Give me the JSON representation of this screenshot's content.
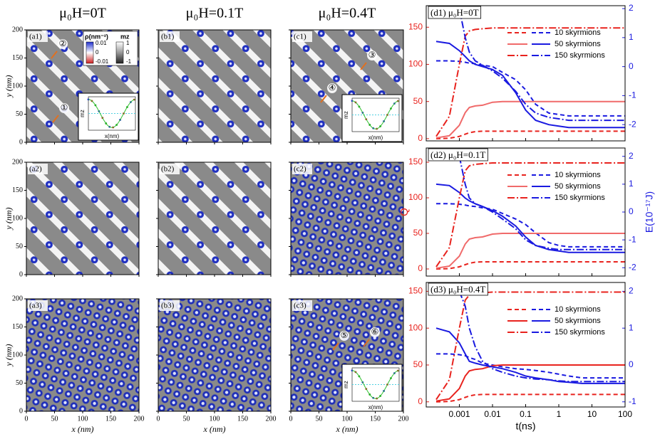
{
  "image_panels": {
    "columns": [
      "μ₀H=0T",
      "μ₀H=0.1T",
      "μ₀H=0.4T"
    ],
    "xlim": [
      0,
      200
    ],
    "ylim": [
      0,
      200
    ],
    "xticks": [
      0,
      50,
      100,
      150,
      200
    ],
    "yticks": [
      0,
      50,
      100,
      150,
      200
    ],
    "xlabel": "x (nm)",
    "ylabel": "y (nm)",
    "panels": [
      {
        "label": "(a1)",
        "pattern": "stripes",
        "annotations": [
          "②",
          "①"
        ],
        "inset": {
          "ylabel": "mz",
          "xlabel": "x(nm)"
        },
        "colorbar": {
          "rho_label": "ρ(nm⁻²)",
          "mz_label": "mz",
          "rho_ticks": [
            0.01,
            0,
            -0.01
          ],
          "mz_ticks": [
            1,
            0,
            -1
          ]
        }
      },
      {
        "label": "(b1)",
        "pattern": "stripes"
      },
      {
        "label": "(c1)",
        "pattern": "stripes",
        "annotations": [
          "③",
          "④"
        ],
        "inset": {
          "ylabel": "mz",
          "xlabel": "x(nm)"
        }
      },
      {
        "label": "(a2)",
        "pattern": "stripes"
      },
      {
        "label": "(b2)",
        "pattern": "stripes"
      },
      {
        "label": "(c2)",
        "pattern": "dots"
      },
      {
        "label": "(a3)",
        "pattern": "dots"
      },
      {
        "label": "(b3)",
        "pattern": "dots"
      },
      {
        "label": "(c3)",
        "pattern": "dots",
        "annotations": [
          "⑤",
          "⑥"
        ],
        "inset": {
          "ylabel": "mz",
          "xlabel": "x(nm)"
        }
      }
    ]
  },
  "chart_data": [
    {
      "type": "line",
      "title": "(d1) μ₀H=0T",
      "xscale": "log",
      "xlim": [
        0.0001,
        100
      ],
      "xticks": [
        0.001,
        0.01,
        0.1,
        1,
        10,
        100
      ],
      "xtick_labels": false,
      "ylim": [
        -3,
        179
      ],
      "yticks": [
        0,
        50,
        100,
        150
      ],
      "y2lim": [
        -2.56,
        2.1
      ],
      "y2ticks": [
        -2,
        -1,
        0,
        1,
        2
      ],
      "x": [
        0.0002,
        0.0005,
        0.001,
        0.0015,
        0.002,
        0.003,
        0.005,
        0.01,
        0.02,
        0.05,
        0.1,
        0.2,
        0.5,
        1,
        2,
        5,
        10,
        20,
        50,
        100
      ],
      "series": [
        {
          "name": "10 skyrmions",
          "dash": "dashed",
          "q": {
            "color": "#e8231e",
            "values": [
              0,
              0.5,
              3,
              6,
              8,
              9.5,
              10,
              10,
              10,
              10,
              10,
              10,
              10,
              10,
              10,
              10,
              10,
              10,
              10,
              10
            ]
          },
          "e": {
            "color": "#1a1ae0",
            "axis": "y2",
            "values": [
              0.2,
              0.2,
              0.18,
              0.15,
              0.12,
              0.1,
              0.05,
              0,
              -0.2,
              -0.45,
              -0.8,
              -1.3,
              -1.6,
              -1.65,
              -1.7,
              -1.7,
              -1.7,
              -1.7,
              -1.7,
              -1.7
            ]
          }
        },
        {
          "name": "50 skyrmions",
          "dash": "solid",
          "q": {
            "color": "#f06a6a",
            "values": [
              1,
              4,
              18,
              35,
              42,
              44,
              45,
              49,
              50,
              50,
              50,
              50,
              50,
              50,
              50,
              50,
              50,
              50,
              50,
              50
            ]
          },
          "e": {
            "color": "#1a1ae0",
            "axis": "y2",
            "values": [
              0.87,
              0.8,
              0.55,
              0.35,
              0.2,
              0.08,
              0,
              -0.1,
              -0.3,
              -0.9,
              -1.5,
              -1.85,
              -2,
              -2.05,
              -2.1,
              -2.1,
              -2.1,
              -2.1,
              -2.1,
              -2.1
            ]
          }
        },
        {
          "name": "150 skyrmions",
          "dash": "dashdot",
          "q": {
            "color": "#e8231e",
            "values": [
              3,
              30,
              100,
              138,
              145,
              147,
              148,
              149,
              149,
              149,
              149,
              149,
              149,
              149,
              149,
              149,
              149,
              149,
              149,
              149
            ]
          },
          "e": {
            "color": "#1a1ae0",
            "axis": "y2",
            "values": [
              null,
              null,
              2,
              1,
              0.5,
              0.2,
              0.05,
              -0.15,
              -0.4,
              -0.85,
              -1.3,
              -1.6,
              -1.75,
              -1.8,
              -1.85,
              -1.85,
              -1.85,
              -1.85,
              -1.85,
              -1.85
            ]
          }
        }
      ]
    },
    {
      "type": "line",
      "title": "(d2) μ₀H=0.1T",
      "xscale": "log",
      "xlim": [
        0.0001,
        100
      ],
      "xticks": [
        0.001,
        0.01,
        0.1,
        1,
        10,
        100
      ],
      "xtick_labels": false,
      "ylabel": "Q",
      "y2label": "E(10⁻¹⁷J)",
      "ylim": [
        -10,
        170
      ],
      "yticks": [
        0,
        50,
        100,
        150
      ],
      "y2lim": [
        -2.3,
        2.3
      ],
      "y2ticks": [
        -2,
        -1,
        0,
        1,
        2
      ],
      "x": [
        0.0002,
        0.0005,
        0.001,
        0.0015,
        0.002,
        0.003,
        0.005,
        0.01,
        0.02,
        0.05,
        0.1,
        0.2,
        0.5,
        1,
        2,
        5,
        10,
        20,
        50,
        100
      ],
      "series": [
        {
          "name": "10 skyrmions",
          "dash": "dashed",
          "q": {
            "color": "#e8231e",
            "values": [
              0,
              0.5,
              3,
              6,
              8,
              9.5,
              10,
              10,
              10,
              10,
              10,
              10,
              10,
              10,
              10,
              10,
              10,
              10,
              10,
              10
            ]
          },
          "e": {
            "color": "#1a1ae0",
            "axis": "y2",
            "values": [
              0.3,
              0.3,
              0.28,
              0.25,
              0.22,
              0.2,
              0.15,
              0.1,
              -0.05,
              -0.25,
              -0.45,
              -0.75,
              -1.1,
              -1.2,
              -1.25,
              -1.25,
              -1.25,
              -1.25,
              -1.25,
              -1.25
            ]
          }
        },
        {
          "name": "50 skyrmions",
          "dash": "solid",
          "q": {
            "color": "#f06a6a",
            "values": [
              1,
              4,
              18,
              35,
              42,
              44,
              45,
              49,
              50,
              50,
              50,
              50,
              50,
              50,
              50,
              50,
              50,
              50,
              50,
              50
            ]
          },
          "e": {
            "color": "#1a1ae0",
            "axis": "y2",
            "values": [
              1,
              0.95,
              0.7,
              0.5,
              0.4,
              0.3,
              0.2,
              0.05,
              -0.15,
              -0.5,
              -0.9,
              -1.2,
              -1.35,
              -1.4,
              -1.45,
              -1.45,
              -1.45,
              -1.45,
              -1.45,
              -1.45
            ]
          }
        },
        {
          "name": "150 skyrmions",
          "dash": "dashdot",
          "q": {
            "color": "#e8231e",
            "values": [
              3,
              30,
              100,
              138,
              145,
              147,
              148,
              149,
              149,
              149,
              149,
              149,
              149,
              149,
              149,
              149,
              149,
              149,
              149,
              149
            ]
          },
          "e": {
            "color": "#1a1ae0",
            "axis": "y2",
            "values": [
              null,
              null,
              2,
              1,
              0.5,
              0.3,
              0.2,
              0,
              -0.25,
              -0.6,
              -1,
              -1.2,
              -1.3,
              -1.35,
              -1.35,
              -1.35,
              -1.35,
              -1.35,
              -1.35,
              -1.35
            ]
          }
        }
      ]
    },
    {
      "type": "line",
      "title": "(d3) μ₀H=0.4T",
      "xscale": "log",
      "xlim": [
        0.0001,
        100
      ],
      "xticks": [
        0.001,
        0.01,
        0.1,
        1,
        10,
        100
      ],
      "xtick_labels": true,
      "xlabel": "t(ns)",
      "ylim": [
        -7,
        162
      ],
      "yticks": [
        0,
        50,
        100,
        150
      ],
      "y2lim": [
        -1.14,
        2.24
      ],
      "y2ticks": [
        -1,
        0,
        1,
        2
      ],
      "x": [
        0.0002,
        0.0005,
        0.001,
        0.0015,
        0.002,
        0.003,
        0.005,
        0.01,
        0.02,
        0.05,
        0.1,
        0.2,
        0.5,
        1,
        2,
        5,
        10,
        20,
        50,
        100
      ],
      "series": [
        {
          "name": "10 skyrmions",
          "dash": "dashed",
          "q": {
            "color": "#e8231e",
            "values": [
              0,
              0.5,
              3,
              6,
              8,
              9.5,
              10,
              10,
              10,
              10,
              10,
              10,
              10,
              10,
              10,
              10,
              10,
              10,
              10,
              10
            ]
          },
          "e": {
            "color": "#1a1ae0",
            "axis": "y2",
            "values": [
              0.3,
              0.3,
              0.28,
              0.25,
              0.2,
              0.15,
              0.05,
              0,
              -0.05,
              -0.1,
              -0.12,
              -0.15,
              -0.2,
              -0.25,
              -0.3,
              -0.35,
              -0.35,
              -0.35,
              -0.35,
              -0.35
            ]
          }
        },
        {
          "name": "50 skyrmions",
          "dash": "solid",
          "q": {
            "color": "#e8231e",
            "values": [
              1,
              4,
              18,
              35,
              42,
              44,
              45,
              49,
              50,
              50,
              50,
              50,
              50,
              50,
              50,
              50,
              50,
              50,
              50,
              50
            ]
          },
          "e": {
            "color": "#1a1ae0",
            "axis": "y2",
            "values": [
              1,
              0.9,
              0.6,
              0.3,
              0.1,
              0.05,
              0,
              -0.05,
              -0.1,
              -0.2,
              -0.3,
              -0.35,
              -0.4,
              -0.45,
              -0.47,
              -0.5,
              -0.5,
              -0.5,
              -0.5,
              -0.5
            ]
          }
        },
        {
          "name": "150 skyrmions",
          "dash": "dashdot",
          "q": {
            "color": "#e8231e",
            "values": [
              3,
              30,
              100,
              138,
              145,
              147,
              148,
              149,
              149,
              149,
              149,
              149,
              149,
              149,
              149,
              149,
              149,
              149,
              149,
              149
            ]
          },
          "e": {
            "color": "#1a1ae0",
            "axis": "y2",
            "values": [
              null,
              null,
              2,
              1.6,
              1,
              0.5,
              0.1,
              -0.1,
              -0.2,
              -0.3,
              -0.35,
              -0.38,
              -0.4,
              -0.43,
              -0.45,
              -0.45,
              -0.45,
              -0.45,
              -0.45,
              -0.45
            ]
          }
        }
      ]
    }
  ]
}
